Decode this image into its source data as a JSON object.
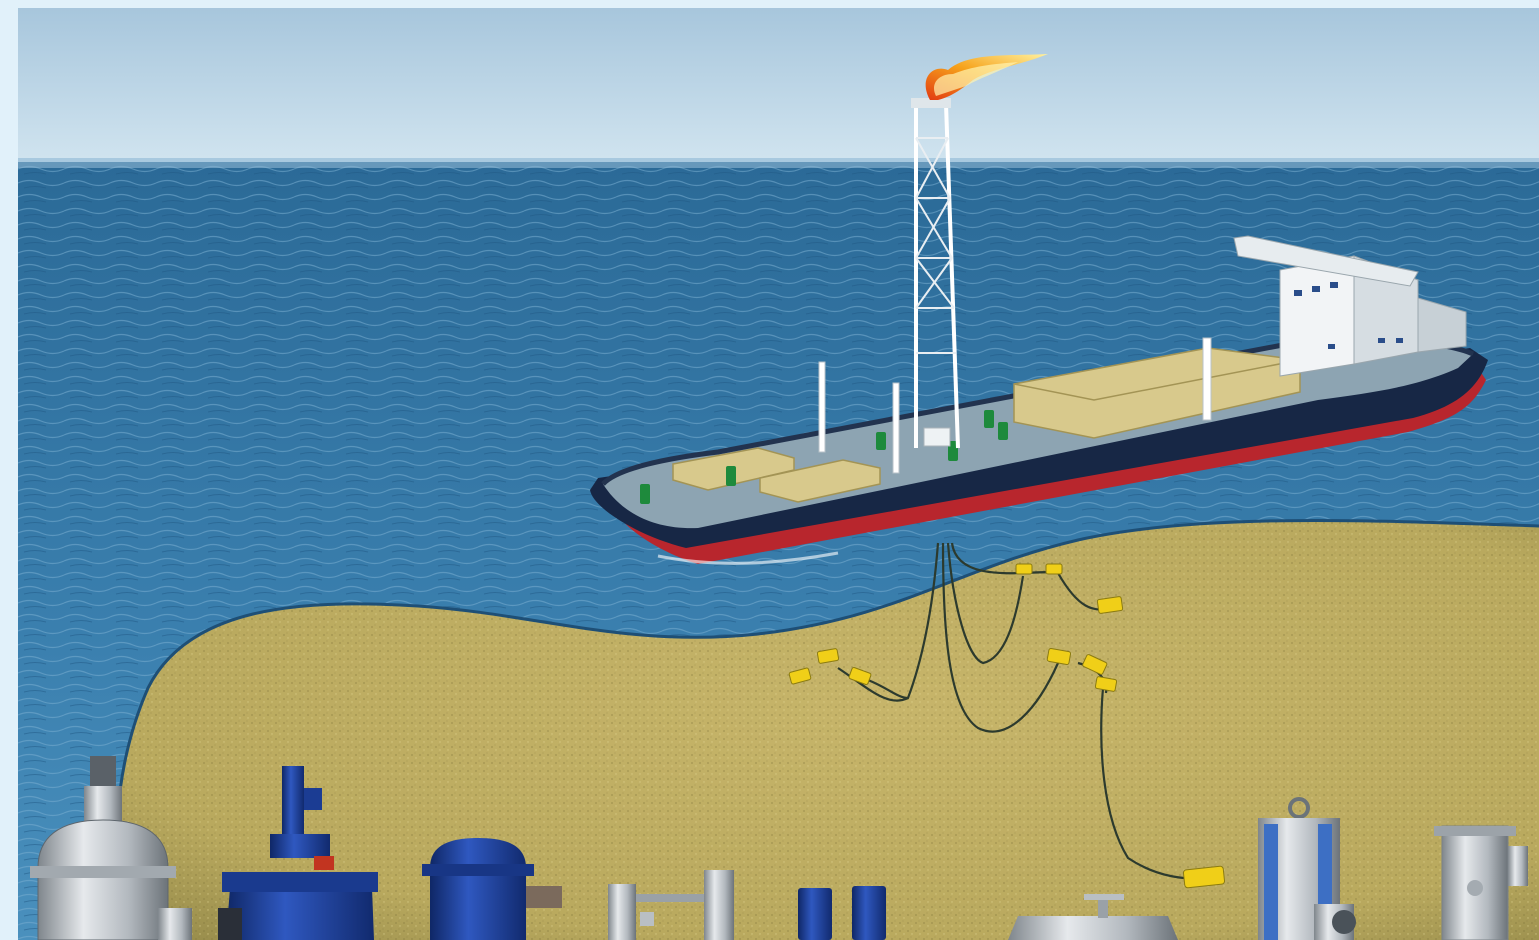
{
  "image": {
    "subject": "fpso-offshore-illustration",
    "colors": {
      "frame": "#e1f1fa",
      "sky_top": "#a8c7dd",
      "sky_bottom": "#cfe3ef",
      "sea_far": "#2f6f9d",
      "sea_near": "#3f86b3",
      "seabed": "#c9b86a",
      "hull_red": "#c0282f",
      "hull_navy": "#182848",
      "deck": "#7f9aa9",
      "module": "#d8c98c",
      "equipment_blue": "#1d3f9a",
      "equipment_steel": "#c8ccd0",
      "subsea_yellow": "#f0d11a"
    },
    "icons": [
      "flare-stack-icon",
      "ship-icon",
      "subsea-manifold-icon",
      "filter-vessel-icon"
    ]
  }
}
